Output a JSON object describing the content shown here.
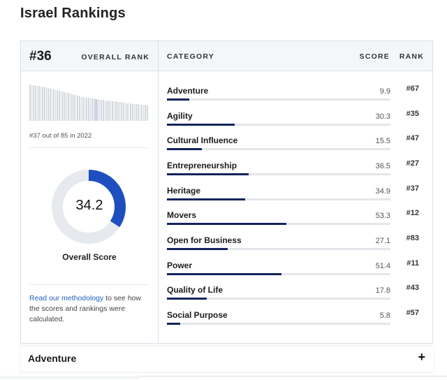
{
  "page": {
    "title": "Israel Rankings"
  },
  "overall": {
    "rank": "#36",
    "rank_label": "OVERALL RANK",
    "history_caption": "#37 out of 85 in 2022",
    "score": "34.2",
    "score_value": 34.2,
    "score_max": 100,
    "score_label": "Overall Score",
    "history_values": [
      100,
      99,
      98,
      97,
      97,
      96,
      95,
      94,
      93,
      92,
      90,
      89,
      88,
      86,
      85,
      84,
      82,
      81,
      80,
      79,
      78,
      76,
      75,
      74,
      72,
      71,
      70,
      68,
      67,
      66,
      65,
      64,
      63,
      62,
      62,
      61,
      60,
      59,
      58,
      58,
      57,
      56,
      56,
      55,
      54,
      54,
      53,
      53,
      52,
      51,
      51,
      50,
      50,
      49,
      48,
      48,
      47,
      47,
      46,
      46,
      45,
      45,
      44,
      44,
      43
    ],
    "history_current_index": 36,
    "colors": {
      "accent": "#1f4fbf",
      "track": "#e6e9ee",
      "bar": "#13245c"
    }
  },
  "headers": {
    "category": "CATEGORY",
    "score": "SCORE",
    "rank": "RANK"
  },
  "categories": [
    {
      "name": "Adventure",
      "score": "9.9",
      "score_value": 9.9,
      "rank": "#67"
    },
    {
      "name": "Agility",
      "score": "30.3",
      "score_value": 30.3,
      "rank": "#35"
    },
    {
      "name": "Cultural Influence",
      "score": "15.5",
      "score_value": 15.5,
      "rank": "#47"
    },
    {
      "name": "Entrepreneurship",
      "score": "36.5",
      "score_value": 36.5,
      "rank": "#27"
    },
    {
      "name": "Heritage",
      "score": "34.9",
      "score_value": 34.9,
      "rank": "#37"
    },
    {
      "name": "Movers",
      "score": "53.3",
      "score_value": 53.3,
      "rank": "#12"
    },
    {
      "name": "Open for Business",
      "score": "27.1",
      "score_value": 27.1,
      "rank": "#83"
    },
    {
      "name": "Power",
      "score": "51.4",
      "score_value": 51.4,
      "rank": "#11"
    },
    {
      "name": "Quality of Life",
      "score": "17.8",
      "score_value": 17.8,
      "rank": "#43"
    },
    {
      "name": "Social Purpose",
      "score": "5.8",
      "score_value": 5.8,
      "rank": "#57"
    }
  ],
  "methodology": {
    "link_text": "Read our methodology",
    "rest_text": " to see how the scores and rankings were calculated."
  },
  "accordion": {
    "title": "Adventure",
    "icon": "plus-icon",
    "icon_glyph": "+"
  }
}
